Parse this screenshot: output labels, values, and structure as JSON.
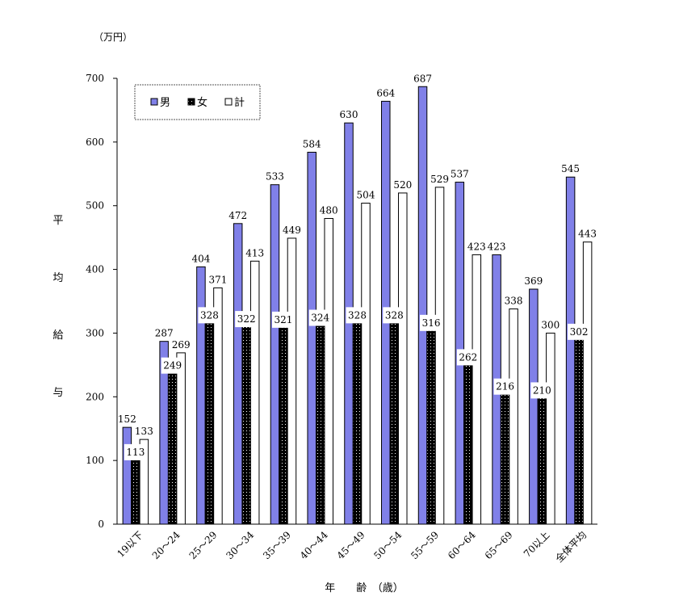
{
  "chart_data": {
    "type": "bar",
    "title": "",
    "unit_label": "（万円）",
    "ylabel": "平均給与",
    "xlabel": "年　　齢　（歳）",
    "ylim": [
      0,
      700
    ],
    "yticks": [
      0,
      100,
      200,
      300,
      400,
      500,
      600,
      700
    ],
    "grid": false,
    "legend_position": "top-left",
    "categories": [
      "19以下",
      "20～24",
      "25～29",
      "30～34",
      "35～39",
      "40～44",
      "45～49",
      "50～54",
      "55～59",
      "60～64",
      "65～69",
      "70以上",
      "全体平均"
    ],
    "series": [
      {
        "name": "男",
        "values": [
          152,
          287,
          404,
          472,
          533,
          584,
          630,
          664,
          687,
          537,
          423,
          369,
          545
        ]
      },
      {
        "name": "女",
        "values": [
          113,
          249,
          328,
          322,
          321,
          324,
          328,
          328,
          316,
          262,
          216,
          210,
          302
        ]
      },
      {
        "name": "計",
        "values": [
          133,
          269,
          371,
          413,
          449,
          480,
          504,
          520,
          529,
          423,
          338,
          300,
          443
        ]
      }
    ]
  },
  "colors": {
    "male": "#8080e8",
    "female": "#000000",
    "total": "#ffffff",
    "border": "#000000"
  }
}
